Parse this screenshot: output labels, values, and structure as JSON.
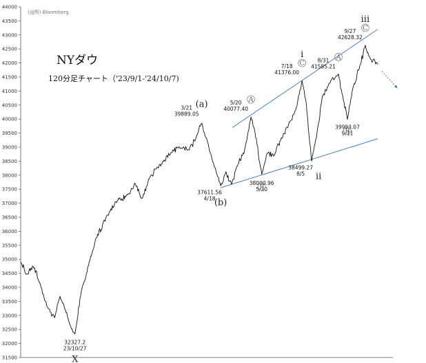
{
  "chart_data": {
    "type": "line",
    "title": "NYダウ",
    "subtitle": "120分足チャート（'23/9/1-'24/10/7)",
    "source": "(出所) Bloomberg",
    "ylim": [
      31500,
      44000
    ],
    "yticks": [
      31500,
      32000,
      32500,
      33000,
      33500,
      34000,
      34500,
      35000,
      35500,
      36000,
      36500,
      37000,
      37500,
      38000,
      38500,
      39000,
      39500,
      40000,
      40500,
      41000,
      41500,
      42000,
      42500,
      43000,
      43500,
      44000
    ],
    "grid": false,
    "legend": "none",
    "line_color": "#111111",
    "trend_color": "#4a7ec0",
    "keypoints": [
      {
        "x": 0.0,
        "y": 34900
      },
      {
        "x": 0.015,
        "y": 34450
      },
      {
        "x": 0.035,
        "y": 34750
      },
      {
        "x": 0.055,
        "y": 34100
      },
      {
        "x": 0.075,
        "y": 33300
      },
      {
        "x": 0.095,
        "y": 32900
      },
      {
        "x": 0.11,
        "y": 33700
      },
      {
        "x": 0.125,
        "y": 33200
      },
      {
        "x": 0.14,
        "y": 32600
      },
      {
        "x": 0.152,
        "y": 32327
      },
      {
        "x": 0.17,
        "y": 33900
      },
      {
        "x": 0.19,
        "y": 34800
      },
      {
        "x": 0.21,
        "y": 35700
      },
      {
        "x": 0.24,
        "y": 36500
      },
      {
        "x": 0.27,
        "y": 37100
      },
      {
        "x": 0.3,
        "y": 37300
      },
      {
        "x": 0.32,
        "y": 37700
      },
      {
        "x": 0.34,
        "y": 37150
      },
      {
        "x": 0.36,
        "y": 37900
      },
      {
        "x": 0.38,
        "y": 38250
      },
      {
        "x": 0.4,
        "y": 38500
      },
      {
        "x": 0.42,
        "y": 38800
      },
      {
        "x": 0.445,
        "y": 39000
      },
      {
        "x": 0.47,
        "y": 38900
      },
      {
        "x": 0.49,
        "y": 39300
      },
      {
        "x": 0.507,
        "y": 39889
      },
      {
        "x": 0.52,
        "y": 39300
      },
      {
        "x": 0.54,
        "y": 38400
      },
      {
        "x": 0.56,
        "y": 37612
      },
      {
        "x": 0.575,
        "y": 38100
      },
      {
        "x": 0.59,
        "y": 37700
      },
      {
        "x": 0.605,
        "y": 38300
      },
      {
        "x": 0.625,
        "y": 38800
      },
      {
        "x": 0.645,
        "y": 40077
      },
      {
        "x": 0.66,
        "y": 39300
      },
      {
        "x": 0.675,
        "y": 38001
      },
      {
        "x": 0.69,
        "y": 38800
      },
      {
        "x": 0.71,
        "y": 38700
      },
      {
        "x": 0.73,
        "y": 39300
      },
      {
        "x": 0.75,
        "y": 39800
      },
      {
        "x": 0.77,
        "y": 40300
      },
      {
        "x": 0.788,
        "y": 41376
      },
      {
        "x": 0.8,
        "y": 40500
      },
      {
        "x": 0.815,
        "y": 38499
      },
      {
        "x": 0.83,
        "y": 39500
      },
      {
        "x": 0.845,
        "y": 40800
      },
      {
        "x": 0.87,
        "y": 41400
      },
      {
        "x": 0.89,
        "y": 41585
      },
      {
        "x": 0.902,
        "y": 40800
      },
      {
        "x": 0.915,
        "y": 39993
      },
      {
        "x": 0.93,
        "y": 41100
      },
      {
        "x": 0.95,
        "y": 41900
      },
      {
        "x": 0.965,
        "y": 42628
      },
      {
        "x": 0.98,
        "y": 42100
      },
      {
        "x": 1.0,
        "y": 41950
      }
    ],
    "trendlines": [
      {
        "name": "upper-channel",
        "points": [
          [
            0.593,
            39700
          ],
          [
            1.0,
            43200
          ]
        ]
      },
      {
        "name": "lower-channel",
        "points": [
          [
            0.56,
            37550
          ],
          [
            1.0,
            39300
          ]
        ]
      }
    ],
    "annotations": [
      {
        "id": "low-x",
        "lines": [
          "32327.2",
          "23/10/27"
        ],
        "x": 0.152,
        "y": 32327,
        "pos": "below"
      },
      {
        "id": "peak-a",
        "lines": [
          "3/21",
          "39889.05"
        ],
        "x": 0.507,
        "y": 39889,
        "pos": "above-left"
      },
      {
        "id": "low-b",
        "lines": [
          "37611.56",
          "4/18"
        ],
        "x": 0.56,
        "y": 37612,
        "pos": "below-left"
      },
      {
        "id": "peak-A1",
        "lines": [
          "5/20",
          "40077.40"
        ],
        "x": 0.645,
        "y": 40077,
        "pos": "above-left"
      },
      {
        "id": "low-B1",
        "lines": [
          "38000.96",
          "5/30"
        ],
        "x": 0.675,
        "y": 38001,
        "pos": "below"
      },
      {
        "id": "peak-C1",
        "lines": [
          "7/18",
          "41376.00"
        ],
        "x": 0.788,
        "y": 41376,
        "pos": "above-left"
      },
      {
        "id": "low-ii",
        "lines": [
          "38499.27",
          "8/5"
        ],
        "x": 0.815,
        "y": 38499,
        "pos": "below-left"
      },
      {
        "id": "peak-A2",
        "lines": [
          "8/31",
          "41585.21"
        ],
        "x": 0.89,
        "y": 41585,
        "pos": "above-left"
      },
      {
        "id": "low-B2",
        "lines": [
          "39993.07",
          "9/11"
        ],
        "x": 0.915,
        "y": 39993,
        "pos": "below"
      },
      {
        "id": "peak-C2",
        "lines": [
          "9/27",
          "42628.32"
        ],
        "x": 0.965,
        "y": 42628,
        "pos": "above-left"
      }
    ],
    "wave_labels": [
      {
        "text": "X",
        "x": 0.152,
        "y": 32327,
        "style": "plain",
        "pos": "below"
      },
      {
        "text": "(a)",
        "x": 0.507,
        "y": 39889,
        "style": "plain",
        "pos": "above"
      },
      {
        "text": "(b)",
        "x": 0.56,
        "y": 37612,
        "style": "plain",
        "pos": "below"
      },
      {
        "text": "A",
        "x": 0.645,
        "y": 40077,
        "style": "circled",
        "pos": "above"
      },
      {
        "text": "B",
        "x": 0.675,
        "y": 38001,
        "style": "circled",
        "pos": "below"
      },
      {
        "text": "C",
        "x": 0.788,
        "y": 41376,
        "style": "circled",
        "pos": "above"
      },
      {
        "text": "i",
        "x": 0.788,
        "y": 41376,
        "style": "plain",
        "pos": "above-high"
      },
      {
        "text": "ii",
        "x": 0.815,
        "y": 38499,
        "style": "plain",
        "pos": "below"
      },
      {
        "text": "A",
        "x": 0.89,
        "y": 41585,
        "style": "circled",
        "pos": "above"
      },
      {
        "text": "B",
        "x": 0.915,
        "y": 39993,
        "style": "circled",
        "pos": "below"
      },
      {
        "text": "C",
        "x": 0.965,
        "y": 42628,
        "style": "circled",
        "pos": "above"
      },
      {
        "text": "iii",
        "x": 0.965,
        "y": 42628,
        "style": "plain",
        "pos": "above-high"
      }
    ],
    "forecast_arrow": {
      "from": [
        1.0,
        41950
      ],
      "to": [
        1.055,
        41100
      ],
      "color": "#4a7ec0"
    }
  }
}
